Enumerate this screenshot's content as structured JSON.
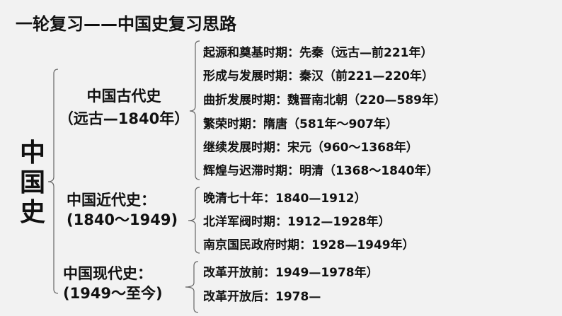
{
  "title": "一轮复习——中国史复习思路",
  "root": "中国史",
  "periods": [
    {
      "name": "中国古代史",
      "range": "（远古—1840年）",
      "items": [
        "起源和奠基时期：先秦（远古—前221年）",
        "形成与发展时期：秦汉（前221—220年）",
        "曲折发展时期：魏晋南北朝（220—589年）",
        "繁荣时期：隋唐（581年～907年）",
        "继续发展时期：宋元（960～1368年）",
        "辉煌与迟滞时期：明清（1368～1840年）"
      ]
    },
    {
      "name": "中国近代史：",
      "range": "(1840～1949)",
      "items": [
        "晚清七十年：1840—1912）",
        "北洋军阀时期：1912—1928年）",
        "南京国民政府时期：1928—1949年）"
      ]
    },
    {
      "name": "中国现代史：",
      "range": "(1949～至今)",
      "items": [
        "改革开放前：1949—1978年）",
        "改革开放后：1978—"
      ]
    }
  ]
}
